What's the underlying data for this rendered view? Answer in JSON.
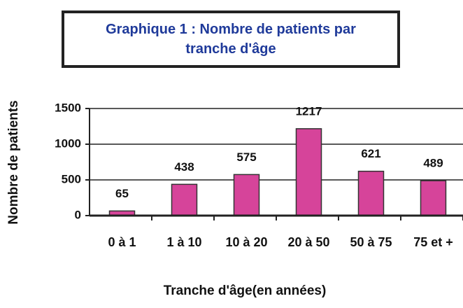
{
  "chart_data": {
    "type": "bar",
    "title": "Graphique 1 : Nombre de patients par tranche d'âge",
    "categories": [
      "0 à 1",
      "1 à 10",
      "10 à 20",
      "20 à 50",
      "50 à 75",
      "75 et +"
    ],
    "values": [
      65,
      438,
      575,
      1217,
      621,
      489
    ],
    "color": "#d6449a",
    "ylim": [
      0,
      1500
    ],
    "yticks": [
      0,
      500,
      1000,
      1500
    ],
    "grid": true,
    "y_label": "Nombre de patients",
    "x_label": "Tranche d'âge(en années)"
  }
}
